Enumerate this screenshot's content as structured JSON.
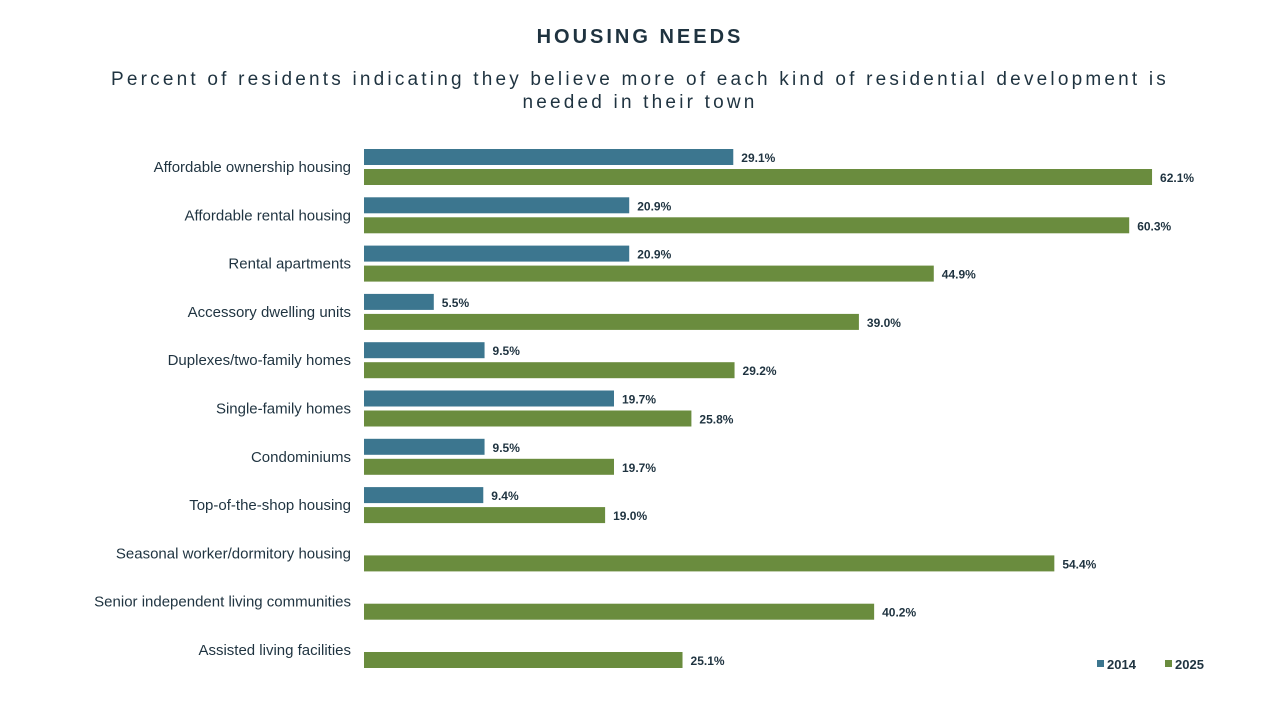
{
  "chart_data": {
    "type": "bar",
    "orientation": "horizontal",
    "title": "HOUSING NEEDS",
    "subtitle": "Percent of residents indicating they believe more of each kind of residential development is needed in their town",
    "categories": [
      "Affordable ownership housing",
      "Affordable rental housing",
      "Rental apartments",
      "Accessory dwelling units",
      "Duplexes/two-family homes",
      "Single-family homes",
      "Condominiums",
      "Top-of-the-shop housing",
      "Seasonal worker/dormitory housing",
      "Senior independent living communities",
      "Assisted living facilities"
    ],
    "series": [
      {
        "name": "2014",
        "color": "#3c768f",
        "values": [
          29.1,
          20.9,
          20.9,
          5.5,
          9.5,
          19.7,
          9.5,
          9.4,
          null,
          null,
          null
        ]
      },
      {
        "name": "2025",
        "color": "#6a8c3e",
        "values": [
          62.1,
          60.3,
          44.9,
          39.0,
          29.2,
          25.8,
          19.7,
          19.0,
          54.4,
          40.2,
          25.1
        ]
      }
    ],
    "value_suffix": "%",
    "xlim": [
      0,
      65
    ],
    "grid": false,
    "legend_position": "bottom-right"
  }
}
